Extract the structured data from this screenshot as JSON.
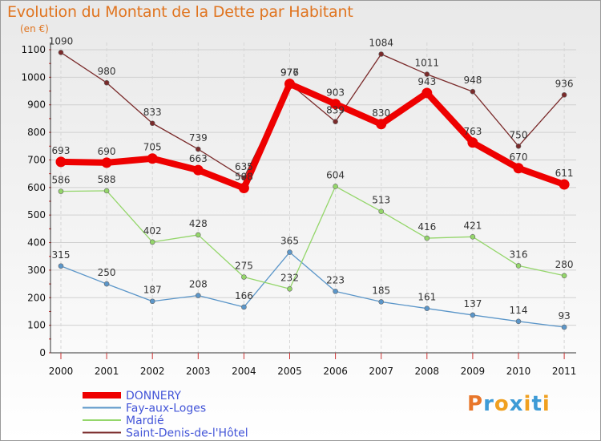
{
  "header": {
    "title": "Evolution du Montant de la Dette par Habitant",
    "unit": "(en €)"
  },
  "logo": {
    "letters": [
      "P",
      "r",
      "o",
      "x",
      "i",
      "t",
      "i"
    ],
    "colors": [
      "#e8762a",
      "#3e9bd6",
      "#f0a020",
      "#3e9bd6",
      "#f0a020",
      "#3e9bd6",
      "#f0a020"
    ]
  },
  "chart_data": {
    "type": "line",
    "title": "Evolution du Montant de la Dette par Habitant",
    "ylabel": "(en €)",
    "xlabel": "",
    "x": [
      "2000",
      "2001",
      "2002",
      "2003",
      "2004",
      "2005",
      "2006",
      "2007",
      "2008",
      "2009",
      "2010",
      "2011"
    ],
    "ylim": [
      0,
      1100
    ],
    "yticks": [
      0,
      100,
      200,
      300,
      400,
      500,
      600,
      700,
      800,
      900,
      1000,
      1100
    ],
    "grid": true,
    "legend_position": "bottom-left",
    "series": [
      {
        "name": "DONNERY",
        "color": "#ee0000",
        "values": [
          693,
          690,
          705,
          663,
          598,
          976,
          903,
          830,
          943,
          763,
          670,
          611
        ],
        "labels": [
          "693",
          "690",
          "705",
          "663",
          "598",
          "976",
          "903",
          "830",
          "943",
          "763",
          "670",
          "611"
        ],
        "thick": true
      },
      {
        "name": "Fay-aux-Loges",
        "color": "#5b96c9",
        "values": [
          315,
          250,
          187,
          208,
          166,
          365,
          223,
          185,
          161,
          137,
          114,
          93
        ],
        "labels": [
          "315",
          "250",
          "187",
          "208",
          "166",
          "365",
          "223",
          "185",
          "161",
          "137",
          "114",
          "93"
        ],
        "thick": false
      },
      {
        "name": "Mardié",
        "color": "#94d66a",
        "values": [
          586,
          588,
          402,
          428,
          275,
          232,
          604,
          513,
          416,
          421,
          316,
          280
        ],
        "labels": [
          "586",
          "588",
          "402",
          "428",
          "275",
          "232",
          "604",
          "513",
          "416",
          "421",
          "316",
          "280"
        ],
        "thick": false
      },
      {
        "name": "Saint-Denis-de-l'Hôtel",
        "color": "#7a2a2a",
        "values": [
          1090,
          980,
          833,
          739,
          635,
          977,
          839,
          1084,
          1011,
          948,
          750,
          936
        ],
        "labels": [
          "1090",
          "980",
          "833",
          "739",
          "635",
          "977",
          "839",
          "1084",
          "1011",
          "948",
          "750",
          "936"
        ],
        "thick": false
      }
    ]
  }
}
